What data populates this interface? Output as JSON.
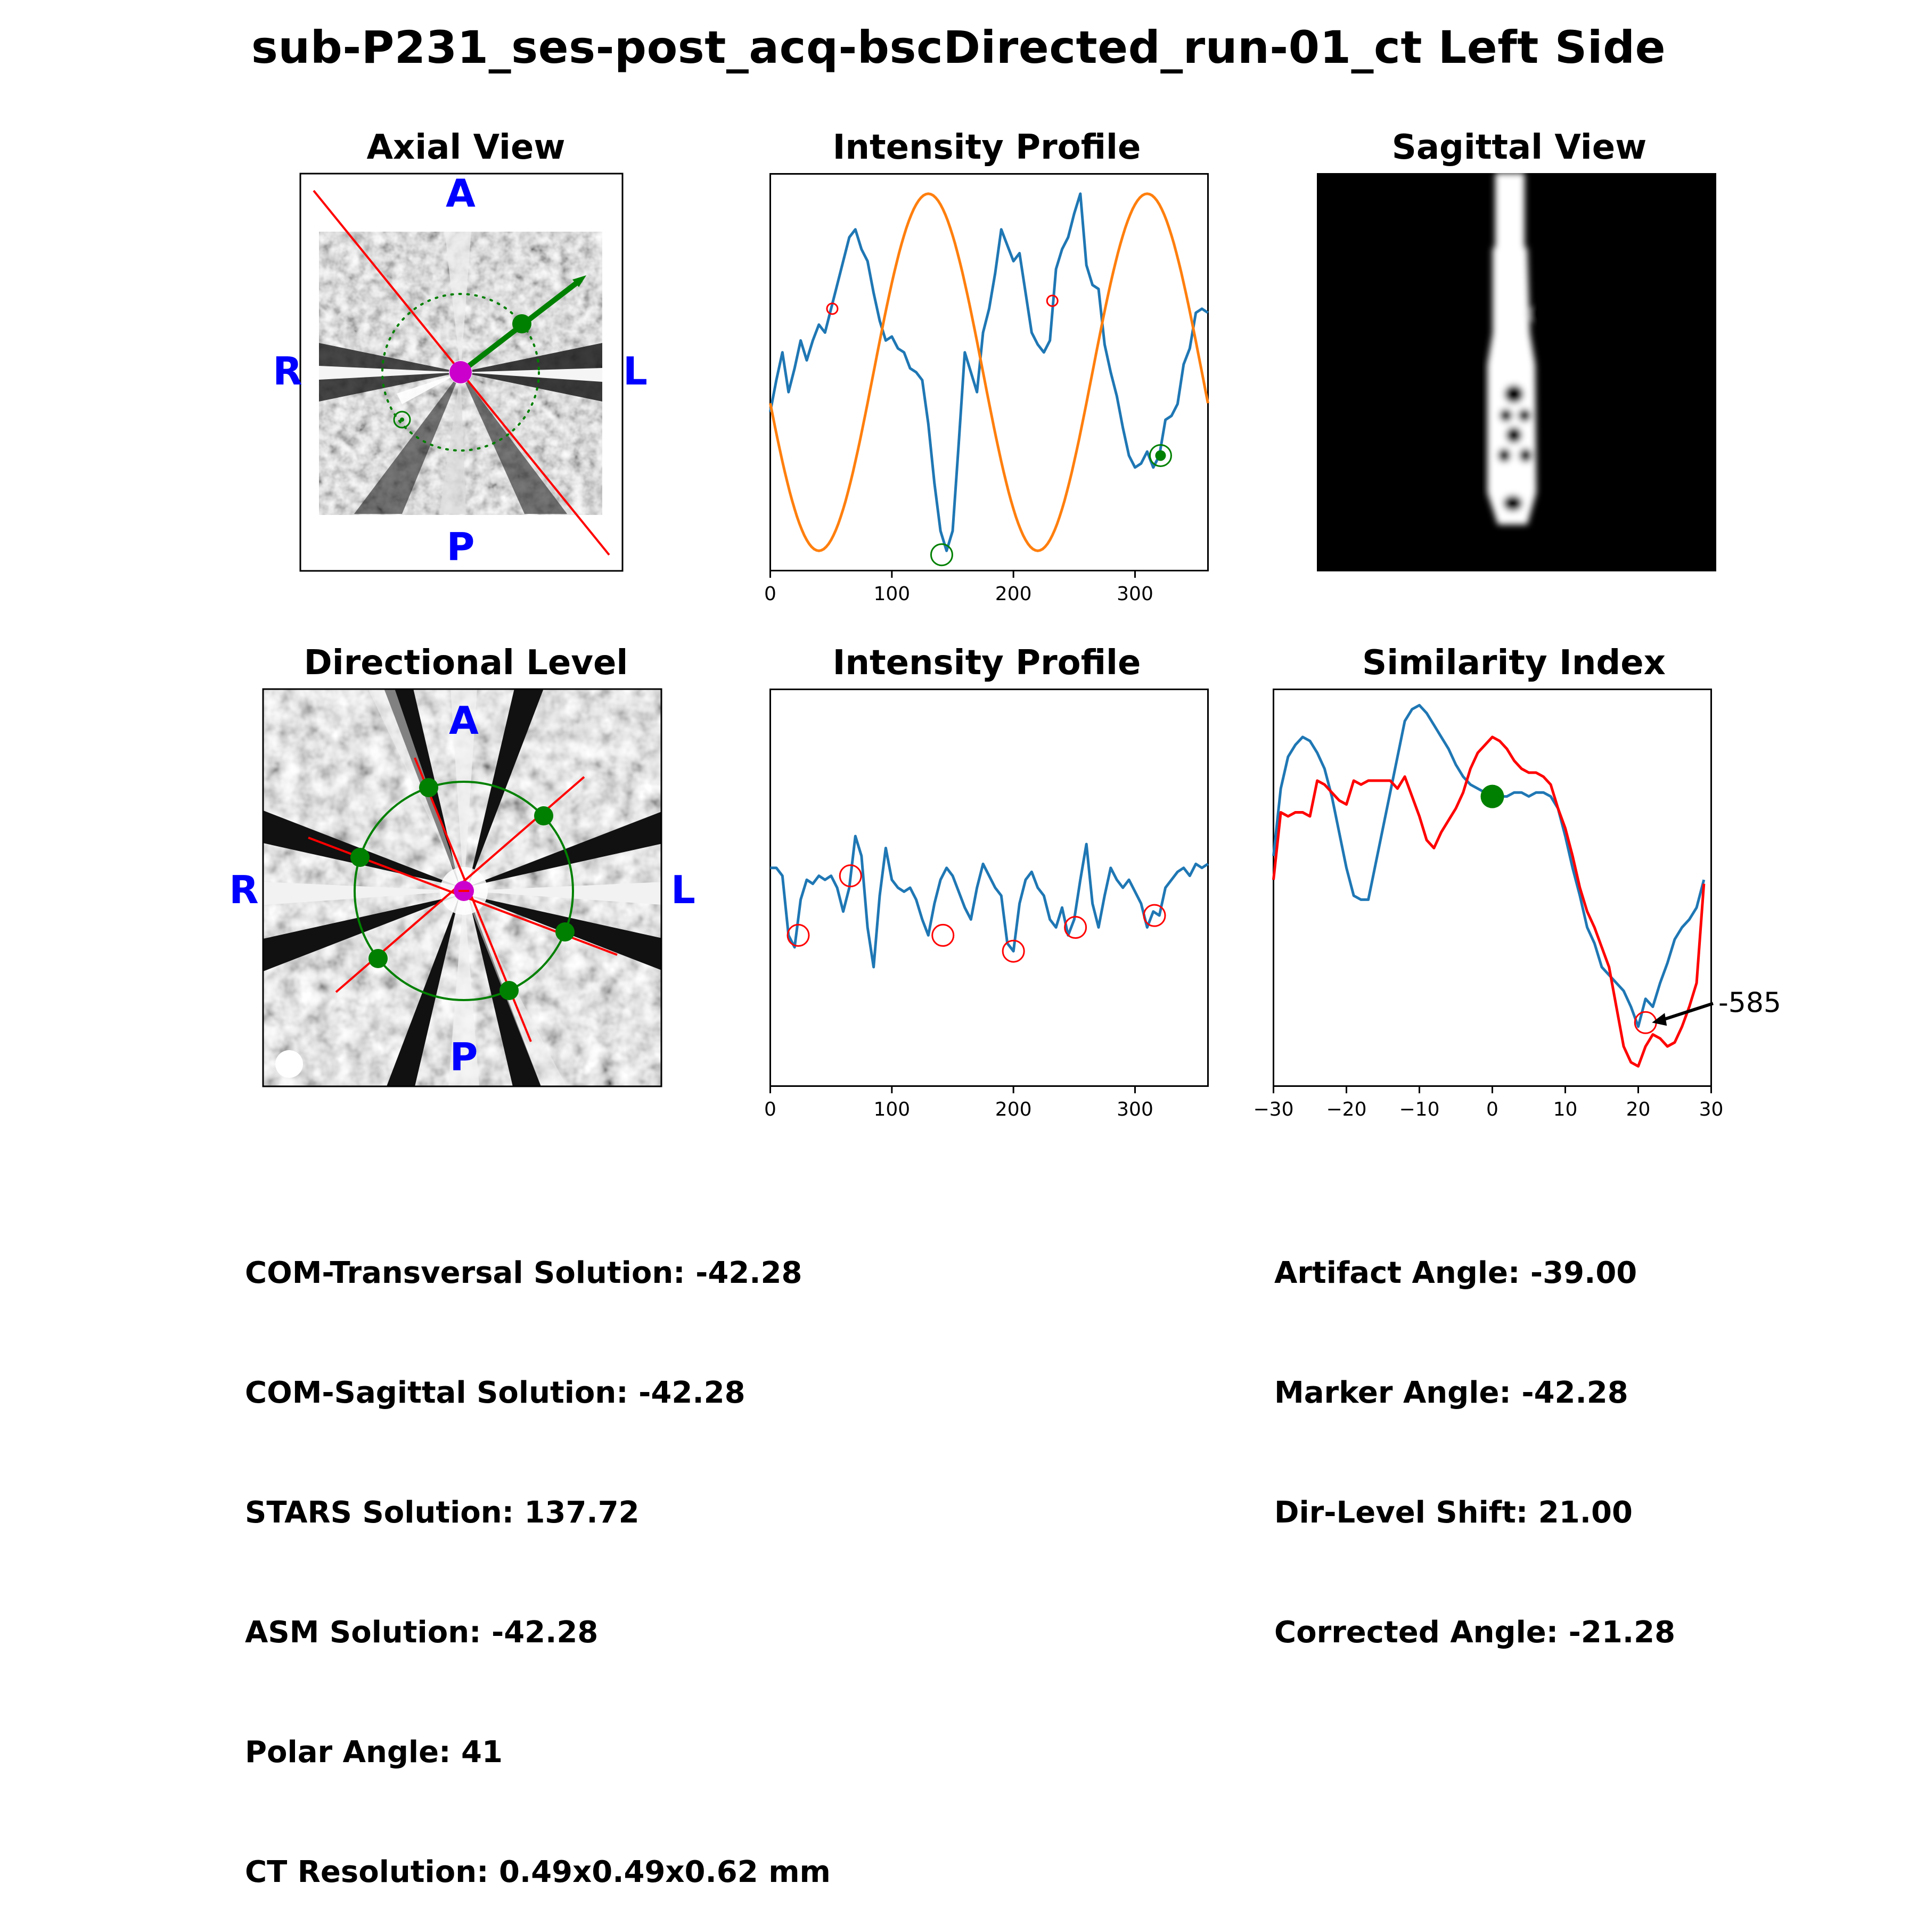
{
  "figure_title": "sub-P231_ses-post_acq-bscDirected_run-01_ct Left Side",
  "panels": {
    "axial": {
      "title": "Axial View",
      "labels": {
        "top": "A",
        "bottom": "P",
        "left": "R",
        "right": "L"
      }
    },
    "intensity1": {
      "title": "Intensity Profile"
    },
    "sagittal": {
      "title": "Sagittal View"
    },
    "directional": {
      "title": "Directional Level",
      "labels": {
        "top": "A",
        "bottom": "P",
        "left": "R",
        "right": "L"
      }
    },
    "intensity2": {
      "title": "Intensity Profile"
    },
    "similarity": {
      "title": "Similarity Index",
      "annotation": "-585"
    }
  },
  "info_left": [
    "COM-Transversal Solution: -42.28",
    "COM-Sagittal Solution: -42.28",
    "STARS Solution: 137.72",
    "ASM Solution: -42.28",
    "Polar Angle: 41",
    "CT Resolution: 0.49x0.49x0.62 mm"
  ],
  "info_right": [
    "Artifact Angle: -39.00",
    "Marker Angle: -42.28",
    "Dir-Level Shift: 21.00",
    "Corrected Angle: -21.28"
  ],
  "colors": {
    "profile": "#1f77b4",
    "sine": "#ff7f0e",
    "marker_green": "#008000",
    "red": "#ff0000",
    "center": "#cc00cc",
    "orientation_label": "#0000ff"
  },
  "chart_data": [
    {
      "type": "line",
      "title": "Intensity Profile",
      "xlim": [
        0,
        360
      ],
      "xticks": [
        0,
        100,
        200,
        300
      ],
      "ylim": [
        0,
        1
      ],
      "series": [
        {
          "style": "blue",
          "x": [
            0,
            5,
            10,
            15,
            20,
            25,
            30,
            35,
            40,
            45,
            50,
            55,
            60,
            65,
            70,
            75,
            80,
            85,
            90,
            95,
            100,
            105,
            110,
            115,
            120,
            125,
            130,
            135,
            140,
            145,
            150,
            155,
            160,
            165,
            170,
            175,
            180,
            185,
            190,
            195,
            200,
            205,
            210,
            215,
            220,
            225,
            230,
            235,
            240,
            245,
            250,
            255,
            260,
            265,
            270,
            275,
            280,
            285,
            290,
            295,
            300,
            305,
            310,
            315,
            320,
            325,
            330,
            335,
            340,
            345,
            350,
            355,
            360
          ],
          "y": [
            0.4,
            0.48,
            0.55,
            0.45,
            0.51,
            0.58,
            0.53,
            0.58,
            0.62,
            0.6,
            0.66,
            0.72,
            0.78,
            0.84,
            0.86,
            0.81,
            0.78,
            0.7,
            0.63,
            0.58,
            0.59,
            0.56,
            0.55,
            0.51,
            0.5,
            0.48,
            0.37,
            0.22,
            0.1,
            0.05,
            0.1,
            0.32,
            0.55,
            0.5,
            0.45,
            0.6,
            0.66,
            0.75,
            0.86,
            0.82,
            0.78,
            0.8,
            0.7,
            0.6,
            0.57,
            0.55,
            0.58,
            0.76,
            0.81,
            0.84,
            0.9,
            0.95,
            0.77,
            0.72,
            0.71,
            0.57,
            0.5,
            0.44,
            0.36,
            0.29,
            0.26,
            0.27,
            0.3,
            0.26,
            0.29,
            0.38,
            0.39,
            0.42,
            0.52,
            0.56,
            0.65,
            0.66,
            0.65
          ]
        },
        {
          "style": "orange",
          "function": "sine",
          "amplitude": 0.45,
          "offset": 0.5,
          "period": 180,
          "phase_deg": 130
        }
      ],
      "markers": [
        {
          "x": 141,
          "y": 0.04,
          "color": "green",
          "kind": "circle"
        },
        {
          "x": 321,
          "y": 0.29,
          "color": "green",
          "kind": "circle_filled"
        },
        {
          "x": 51,
          "y": 0.66,
          "color": "red",
          "kind": "small_circle"
        },
        {
          "x": 232,
          "y": 0.68,
          "color": "red",
          "kind": "small_circle"
        }
      ]
    },
    {
      "type": "line",
      "title": "Intensity Profile",
      "xlim": [
        0,
        360
      ],
      "xticks": [
        0,
        100,
        200,
        300
      ],
      "ylim": [
        0,
        1
      ],
      "series": [
        {
          "style": "blue",
          "x": [
            0,
            5,
            10,
            15,
            20,
            25,
            30,
            35,
            40,
            45,
            50,
            55,
            60,
            65,
            70,
            75,
            80,
            85,
            90,
            95,
            100,
            105,
            110,
            115,
            120,
            125,
            130,
            135,
            140,
            145,
            150,
            155,
            160,
            165,
            170,
            175,
            180,
            185,
            190,
            195,
            200,
            205,
            210,
            215,
            220,
            225,
            230,
            235,
            240,
            245,
            250,
            255,
            260,
            265,
            270,
            275,
            280,
            285,
            290,
            295,
            300,
            305,
            310,
            315,
            320,
            325,
            330,
            335,
            340,
            345,
            350,
            355,
            360
          ],
          "y": [
            0.55,
            0.55,
            0.53,
            0.38,
            0.35,
            0.47,
            0.52,
            0.51,
            0.53,
            0.52,
            0.53,
            0.5,
            0.44,
            0.5,
            0.63,
            0.58,
            0.4,
            0.3,
            0.48,
            0.6,
            0.52,
            0.5,
            0.49,
            0.5,
            0.47,
            0.42,
            0.38,
            0.46,
            0.52,
            0.55,
            0.53,
            0.49,
            0.45,
            0.42,
            0.5,
            0.56,
            0.53,
            0.5,
            0.48,
            0.36,
            0.34,
            0.46,
            0.52,
            0.54,
            0.5,
            0.48,
            0.42,
            0.4,
            0.45,
            0.38,
            0.42,
            0.52,
            0.61,
            0.46,
            0.4,
            0.48,
            0.55,
            0.52,
            0.5,
            0.52,
            0.49,
            0.46,
            0.4,
            0.44,
            0.43,
            0.5,
            0.52,
            0.54,
            0.55,
            0.53,
            0.56,
            0.55,
            0.56
          ]
        },
        {
          "style": "red-circles",
          "x": [
            23,
            66,
            142,
            200,
            251,
            316
          ],
          "y": [
            0.38,
            0.53,
            0.38,
            0.34,
            0.4,
            0.43
          ]
        }
      ]
    },
    {
      "type": "line",
      "title": "Similarity Index",
      "xlim": [
        -30,
        30
      ],
      "xticks": [
        -30,
        -20,
        -10,
        0,
        10,
        20,
        30
      ],
      "ylim": [
        0,
        1
      ],
      "series": [
        {
          "style": "blue",
          "x": [
            -30,
            -29,
            -28,
            -27,
            -26,
            -25,
            -24,
            -23,
            -22,
            -21,
            -20,
            -19,
            -18,
            -17,
            -16,
            -15,
            -14,
            -13,
            -12,
            -11,
            -10,
            -9,
            -8,
            -7,
            -6,
            -5,
            -4,
            -3,
            -2,
            -1,
            0,
            1,
            2,
            3,
            4,
            5,
            6,
            7,
            8,
            9,
            10,
            11,
            12,
            13,
            14,
            15,
            16,
            17,
            18,
            19,
            20,
            21,
            22,
            23,
            24,
            25,
            26,
            27,
            28,
            29
          ],
          "y": [
            0.58,
            0.75,
            0.83,
            0.86,
            0.88,
            0.87,
            0.84,
            0.8,
            0.73,
            0.64,
            0.55,
            0.48,
            0.47,
            0.47,
            0.56,
            0.65,
            0.74,
            0.83,
            0.92,
            0.95,
            0.96,
            0.94,
            0.91,
            0.88,
            0.85,
            0.81,
            0.78,
            0.76,
            0.75,
            0.74,
            0.73,
            0.73,
            0.73,
            0.74,
            0.74,
            0.73,
            0.74,
            0.74,
            0.73,
            0.7,
            0.63,
            0.55,
            0.48,
            0.4,
            0.36,
            0.3,
            0.28,
            0.26,
            0.24,
            0.2,
            0.15,
            0.22,
            0.2,
            0.26,
            0.31,
            0.37,
            0.4,
            0.42,
            0.45,
            0.52
          ]
        },
        {
          "style": "red",
          "x": [
            -30,
            -29,
            -28,
            -27,
            -26,
            -25,
            -24,
            -23,
            -22,
            -21,
            -20,
            -19,
            -18,
            -17,
            -16,
            -15,
            -14,
            -13,
            -12,
            -11,
            -10,
            -9,
            -8,
            -7,
            -6,
            -5,
            -4,
            -3,
            -2,
            -1,
            0,
            1,
            2,
            3,
            4,
            5,
            6,
            7,
            8,
            9,
            10,
            11,
            12,
            13,
            14,
            15,
            16,
            17,
            18,
            19,
            20,
            21,
            22,
            23,
            24,
            25,
            26,
            27,
            28,
            29
          ],
          "y": [
            0.52,
            0.69,
            0.68,
            0.69,
            0.69,
            0.68,
            0.77,
            0.76,
            0.74,
            0.72,
            0.71,
            0.77,
            0.76,
            0.77,
            0.77,
            0.77,
            0.77,
            0.75,
            0.78,
            0.73,
            0.68,
            0.62,
            0.6,
            0.64,
            0.67,
            0.7,
            0.74,
            0.8,
            0.84,
            0.86,
            0.88,
            0.87,
            0.85,
            0.82,
            0.8,
            0.79,
            0.79,
            0.78,
            0.76,
            0.7,
            0.65,
            0.58,
            0.5,
            0.44,
            0.4,
            0.35,
            0.3,
            0.2,
            0.1,
            0.06,
            0.05,
            0.1,
            0.13,
            0.12,
            0.1,
            0.11,
            0.15,
            0.2,
            0.26,
            0.51
          ]
        }
      ],
      "markers": [
        {
          "x": 0,
          "y": 0.73,
          "color": "green",
          "kind": "filled"
        },
        {
          "x": 21,
          "y": 0.16,
          "color": "red",
          "kind": "circle"
        }
      ],
      "annotation": {
        "text": "-585",
        "x": 21,
        "y": 0.16
      }
    }
  ]
}
